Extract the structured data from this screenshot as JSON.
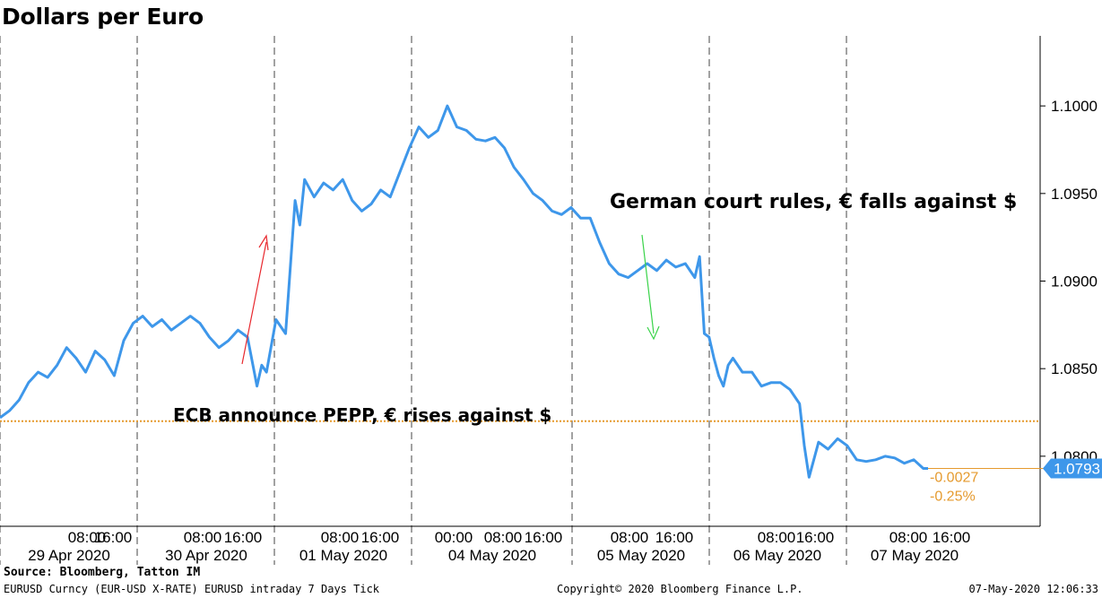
{
  "chart_data": {
    "type": "line",
    "title": "Dollars per Euro",
    "ylim": [
      1.076,
      1.104
    ],
    "y_ticks": [
      "1.1000",
      "1.0950",
      "1.0900",
      "1.0850",
      "1.0800"
    ],
    "y_tick_values": [
      1.1,
      1.095,
      1.09,
      1.085,
      1.08
    ],
    "x_time_labels": [
      "08:00",
      "16:00",
      "08:00",
      "16:00",
      "08:00",
      "16:00",
      "00:00",
      "08:00",
      "16:00",
      "08:00",
      "16:00",
      "08:00",
      "16:00",
      "08:00",
      "16:00"
    ],
    "day_labels": [
      "29 Apr 2020",
      "30 Apr 2020",
      "01 May 2020",
      "04 May 2020",
      "05 May 2020",
      "06 May 2020",
      "07 May 2020"
    ],
    "series": [
      {
        "color": "#3e97ea",
        "points": [
          [
            0,
            1.0822
          ],
          [
            2,
            1.0826
          ],
          [
            4,
            1.0832
          ],
          [
            6,
            1.0842
          ],
          [
            8,
            1.0848
          ],
          [
            10,
            1.0845
          ],
          [
            12,
            1.0852
          ],
          [
            14,
            1.0862
          ],
          [
            16,
            1.0856
          ],
          [
            18,
            1.0848
          ],
          [
            20,
            1.086
          ],
          [
            22,
            1.0855
          ],
          [
            24,
            1.0846
          ],
          [
            26,
            1.0866
          ],
          [
            28,
            1.0876
          ],
          [
            30,
            1.088
          ],
          [
            32,
            1.0874
          ],
          [
            34,
            1.0878
          ],
          [
            36,
            1.0872
          ],
          [
            38,
            1.0876
          ],
          [
            40,
            1.088
          ],
          [
            42,
            1.0876
          ],
          [
            44,
            1.0868
          ],
          [
            46,
            1.0862
          ],
          [
            48,
            1.0866
          ],
          [
            50,
            1.0872
          ],
          [
            52,
            1.0868
          ],
          [
            54,
            1.084
          ],
          [
            55,
            1.0852
          ],
          [
            56,
            1.0848
          ],
          [
            58,
            1.0878
          ],
          [
            60,
            1.087
          ],
          [
            62,
            1.0946
          ],
          [
            63,
            1.0932
          ],
          [
            64,
            1.0958
          ],
          [
            66,
            1.0948
          ],
          [
            68,
            1.0956
          ],
          [
            70,
            1.0952
          ],
          [
            72,
            1.0958
          ],
          [
            74,
            1.0946
          ],
          [
            76,
            1.094
          ],
          [
            78,
            1.0944
          ],
          [
            80,
            1.0952
          ],
          [
            82,
            1.0948
          ],
          [
            84,
            1.0962
          ],
          [
            86,
            1.0976
          ],
          [
            88,
            1.0988
          ],
          [
            90,
            1.0982
          ],
          [
            92,
            1.0986
          ],
          [
            94,
            1.1
          ],
          [
            96,
            1.0988
          ],
          [
            98,
            1.0986
          ],
          [
            100,
            1.0981
          ],
          [
            102,
            1.098
          ],
          [
            104,
            1.0982
          ],
          [
            106,
            1.0976
          ],
          [
            108,
            1.0965
          ],
          [
            110,
            1.0958
          ],
          [
            112,
            1.095
          ],
          [
            114,
            1.0946
          ],
          [
            116,
            1.094
          ],
          [
            118,
            1.0938
          ],
          [
            120,
            1.0942
          ],
          [
            122,
            1.0936
          ],
          [
            124,
            1.0936
          ],
          [
            126,
            1.0922
          ],
          [
            128,
            1.091
          ],
          [
            130,
            1.0904
          ],
          [
            132,
            1.0902
          ],
          [
            134,
            1.0906
          ],
          [
            136,
            1.091
          ],
          [
            138,
            1.0906
          ],
          [
            140,
            1.0912
          ],
          [
            142,
            1.0908
          ],
          [
            144,
            1.091
          ],
          [
            146,
            1.0902
          ],
          [
            147,
            1.0914
          ],
          [
            148,
            1.087
          ],
          [
            149,
            1.0868
          ],
          [
            150,
            1.0856
          ],
          [
            151,
            1.0846
          ],
          [
            152,
            1.084
          ],
          [
            153,
            1.0852
          ],
          [
            154,
            1.0856
          ],
          [
            156,
            1.0848
          ],
          [
            158,
            1.0848
          ],
          [
            160,
            1.084
          ],
          [
            162,
            1.0842
          ],
          [
            164,
            1.0842
          ],
          [
            166,
            1.0838
          ],
          [
            168,
            1.083
          ],
          [
            169,
            1.0806
          ],
          [
            170,
            1.0788
          ],
          [
            171,
            1.0798
          ],
          [
            172,
            1.0808
          ],
          [
            174,
            1.0804
          ],
          [
            176,
            1.081
          ],
          [
            178,
            1.0806
          ],
          [
            180,
            1.0798
          ],
          [
            182,
            1.0797
          ],
          [
            184,
            1.0798
          ],
          [
            186,
            1.08
          ],
          [
            188,
            1.0799
          ],
          [
            190,
            1.0796
          ],
          [
            192,
            1.0798
          ],
          [
            194,
            1.0793
          ],
          [
            195,
            1.0793
          ]
        ]
      }
    ],
    "reference_line": {
      "value": 1.082,
      "color": "#e59a2e"
    },
    "last_value": {
      "label": "1.0793",
      "value": 1.0793,
      "change": "-0.0027",
      "change_pct": "-0.25%"
    },
    "annotations": [
      {
        "text": "ECB announce PEPP, € rises against $",
        "arrow_color": "#e8282e"
      },
      {
        "text": "German court rules, € falls against $",
        "arrow_color": "#3ad34a"
      }
    ],
    "grid": "dashed vertical day separators",
    "legend": "none"
  },
  "footer": {
    "source": "Source: Bloomberg, Tatton IM",
    "ticker": "EURUSD Curncy (EUR-USD X-RATE) EURUSD intraday 7 Days  Tick",
    "copyright": "Copyright© 2020 Bloomberg Finance L.P.",
    "timestamp": "07-May-2020 12:06:33"
  }
}
